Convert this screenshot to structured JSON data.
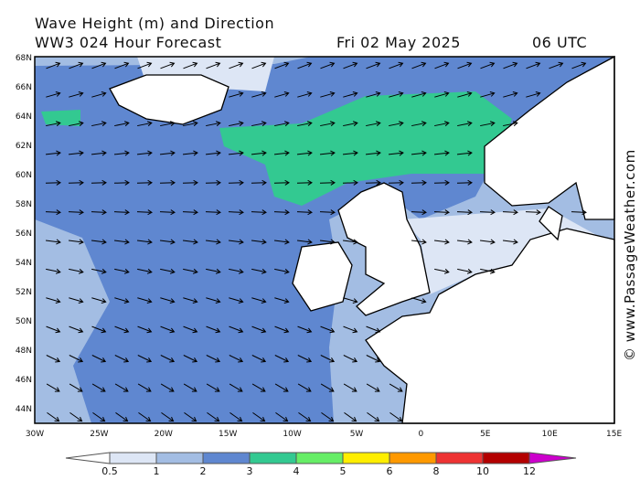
{
  "header": {
    "title": "Wave Height (m) and Direction",
    "subtitle": "WW3 024 Hour Forecast",
    "date": "Fri 02 May 2025",
    "time": "06 UTC"
  },
  "lat_labels": [
    "68N",
    "66N",
    "64N",
    "62N",
    "60N",
    "58N",
    "56N",
    "54N",
    "52N",
    "50N",
    "48N",
    "46N",
    "44N"
  ],
  "lon_labels": [
    "30W",
    "25W",
    "20W",
    "15W",
    "10W",
    "5W",
    "0",
    "5E",
    "10E",
    "15E"
  ],
  "colorbar": {
    "labels": [
      "0.5",
      "1",
      "2",
      "3",
      "4",
      "5",
      "6",
      "8",
      "10",
      "12"
    ],
    "colors": [
      "#ffffff",
      "#dde6f5",
      "#a3bde3",
      "#5f87d0",
      "#33c991",
      "#66ee66",
      "#ffee00",
      "#ff9900",
      "#ee3333",
      "#b30000",
      "#cc00cc"
    ]
  },
  "copyright": "© www.PassageWeather.com"
}
